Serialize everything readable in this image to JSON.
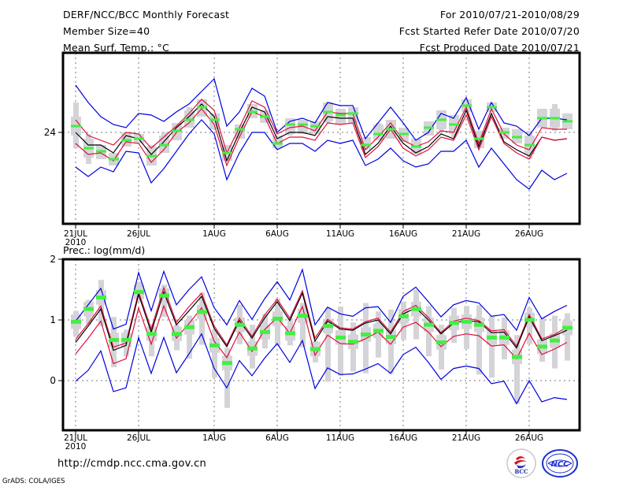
{
  "header": {
    "left": [
      "DERF/NCC/BCC Monthly Forecast",
      "Member Size=40",
      "Mean Surf. Temp.: °C"
    ],
    "right": [
      "For 2010/07/21-2010/08/29",
      "Fcst Started Refer Date 2010/07/20",
      "Fcst Produced Date 2010/07/21"
    ]
  },
  "footer": {
    "url": "http://cmdp.ncc.cma.gov.cn",
    "credit": "GrADS: COLA/IGES",
    "logos": [
      "BCC",
      "NCC"
    ]
  },
  "colors": {
    "envelope": "#0000e0",
    "spread": "#e0103c",
    "mean": "#000000",
    "marker": "#44ee44",
    "box": "#d4d4d8"
  },
  "chart_data": [
    {
      "type": "line",
      "title": "Mean Surf. Temp.: °C",
      "xlabel": "",
      "ylabel": "°C",
      "x_tick_labels": [
        "21JUL",
        "26JUL",
        "1AUG",
        "6AUG",
        "11AUG",
        "16AUG",
        "21AUG",
        "26AUG"
      ],
      "x_tick_sublabel": "2010",
      "x_tick_days": [
        0,
        5,
        11,
        16,
        21,
        26,
        31,
        36
      ],
      "y_tick_labels": [
        "24"
      ],
      "y_ticks": [
        24
      ],
      "ylim": [
        18.8,
        28.0
      ],
      "grid": true,
      "days": 40,
      "series": [
        {
          "name": "max",
          "color_key": "envelope",
          "values": [
            27.0,
            25.9,
            25.0,
            24.5,
            24.3,
            25.2,
            25.1,
            24.7,
            25.3,
            25.8,
            26.6,
            27.4,
            24.4,
            25.3,
            26.8,
            26.3,
            24.0,
            24.7,
            24.9,
            24.6,
            25.9,
            25.7,
            25.7,
            23.6,
            24.6,
            25.6,
            24.6,
            23.5,
            24.0,
            25.2,
            24.9,
            26.2,
            24.2,
            25.9,
            24.6,
            24.4,
            23.8,
            24.9,
            24.9,
            24.8
          ]
        },
        {
          "name": "spread-upper",
          "color_key": "spread",
          "values": [
            24.8,
            23.8,
            23.5,
            23.2,
            24.0,
            23.9,
            23.0,
            23.7,
            24.4,
            25.2,
            26.1,
            25.4,
            22.7,
            24.3,
            26.0,
            25.6,
            23.9,
            24.3,
            24.4,
            24.1,
            25.3,
            25.2,
            25.2,
            22.9,
            23.7,
            24.6,
            23.5,
            23.1,
            23.4,
            24.1,
            24.0,
            25.6,
            23.3,
            25.5,
            23.9,
            23.2,
            22.9,
            24.3,
            24.2,
            24.2
          ]
        },
        {
          "name": "mean",
          "color_key": "mean",
          "values": [
            24.0,
            23.2,
            23.2,
            22.7,
            23.8,
            23.6,
            22.6,
            23.4,
            24.3,
            25.0,
            25.8,
            25.0,
            22.2,
            24.0,
            25.6,
            25.3,
            23.6,
            24.0,
            24.0,
            23.8,
            25.0,
            24.9,
            24.9,
            22.6,
            23.3,
            24.4,
            23.3,
            22.7,
            23.1,
            23.9,
            23.6,
            25.4,
            23.1,
            25.2,
            23.4,
            22.9,
            22.5,
            23.7,
            23.5,
            23.6
          ]
        },
        {
          "name": "spread-lower",
          "color_key": "spread",
          "values": [
            23.3,
            22.6,
            22.7,
            22.2,
            23.4,
            23.3,
            22.1,
            22.9,
            24.0,
            24.6,
            25.5,
            24.5,
            21.9,
            23.7,
            25.3,
            25.0,
            23.3,
            23.7,
            23.7,
            23.5,
            24.6,
            24.5,
            24.6,
            22.4,
            23.1,
            24.2,
            23.0,
            22.5,
            22.9,
            23.7,
            23.5,
            25.1,
            22.9,
            25.0,
            23.3,
            22.7,
            22.3,
            23.7,
            23.5,
            23.6
          ]
        },
        {
          "name": "min",
          "color_key": "envelope",
          "values": [
            21.8,
            21.2,
            21.8,
            21.5,
            22.8,
            22.7,
            20.8,
            21.7,
            22.8,
            23.9,
            24.8,
            23.9,
            21.0,
            22.7,
            24.0,
            24.0,
            22.9,
            23.3,
            23.3,
            22.8,
            23.5,
            23.3,
            23.5,
            21.9,
            22.3,
            23.0,
            22.2,
            21.8,
            22.0,
            22.8,
            22.8,
            23.5,
            21.8,
            23.0,
            22.0,
            21.0,
            20.4,
            21.6,
            21.0,
            21.4
          ]
        }
      ],
      "markers": {
        "name": "observed/median",
        "color_key": "marker",
        "values": [
          24.4,
          23.0,
          22.8,
          22.3,
          23.5,
          23.6,
          22.5,
          23.2,
          24.1,
          24.8,
          25.6,
          24.8,
          22.7,
          24.2,
          25.3,
          25.0,
          23.3,
          24.5,
          24.5,
          24.4,
          25.3,
          25.1,
          25.2,
          23.2,
          23.9,
          24.2,
          23.9,
          23.1,
          24.3,
          24.8,
          24.5,
          25.7,
          23.6,
          25.6,
          24.0,
          23.7,
          23.2,
          24.9,
          24.9,
          24.7
        ]
      },
      "boxes": {
        "name": "ensemble range",
        "color_key": "box",
        "low": [
          23.0,
          22.0,
          22.3,
          21.9,
          23.1,
          23.3,
          21.9,
          22.7,
          23.5,
          24.3,
          25.0,
          24.2,
          22.2,
          23.6,
          24.9,
          24.6,
          23.0,
          23.8,
          23.9,
          23.9,
          24.6,
          24.5,
          24.6,
          22.9,
          23.5,
          23.6,
          23.4,
          22.6,
          23.8,
          24.0,
          23.7,
          25.3,
          23.0,
          25.3,
          23.6,
          23.3,
          22.3,
          24.3,
          24.1,
          24.2
        ],
        "high": [
          25.9,
          23.9,
          23.2,
          22.7,
          24.0,
          23.9,
          23.2,
          24.0,
          24.6,
          25.6,
          26.1,
          25.2,
          23.2,
          24.5,
          25.8,
          25.4,
          23.8,
          24.9,
          24.8,
          24.7,
          25.9,
          25.5,
          25.6,
          23.7,
          24.6,
          24.8,
          24.3,
          23.6,
          24.7,
          25.4,
          25.1,
          26.1,
          24.1,
          25.9,
          24.3,
          24.2,
          24.1,
          25.5,
          25.8,
          25.2
        ]
      }
    },
    {
      "type": "line",
      "title": "Prec.: log(mm/d)",
      "xlabel": "",
      "ylabel": "log(mm/d)",
      "x_tick_labels": [
        "21JUL",
        "26JUL",
        "1AUG",
        "6AUG",
        "11AUG",
        "16AUG",
        "21AUG",
        "26AUG"
      ],
      "x_tick_sublabel": "2010",
      "x_tick_days": [
        0,
        5,
        11,
        16,
        21,
        26,
        31,
        36
      ],
      "y_tick_labels": [
        "0",
        "1",
        "2"
      ],
      "y_ticks": [
        0,
        1,
        2
      ],
      "ylim": [
        -0.8,
        2.0
      ],
      "grid": true,
      "days": 40,
      "series": [
        {
          "name": "max",
          "color_key": "envelope",
          "values": [
            0.98,
            1.25,
            1.52,
            0.85,
            0.93,
            1.78,
            1.15,
            1.8,
            1.25,
            1.5,
            1.71,
            1.2,
            0.92,
            1.32,
            1.01,
            1.35,
            1.63,
            1.33,
            1.83,
            0.92,
            1.21,
            1.1,
            1.06,
            1.2,
            1.22,
            0.96,
            1.39,
            1.54,
            1.3,
            1.05,
            1.25,
            1.32,
            1.28,
            1.06,
            1.09,
            0.83,
            1.37,
            1.02,
            1.14,
            1.24
          ]
        },
        {
          "name": "spread-upper",
          "color_key": "spread",
          "values": [
            0.68,
            0.94,
            1.23,
            0.55,
            0.62,
            1.46,
            0.85,
            1.53,
            0.96,
            1.22,
            1.44,
            0.9,
            0.59,
            1.03,
            0.73,
            1.08,
            1.34,
            1.03,
            1.48,
            0.7,
            1.01,
            0.87,
            0.85,
            0.97,
            1.03,
            0.8,
            1.14,
            1.24,
            1.04,
            0.79,
            0.98,
            1.03,
            0.99,
            0.82,
            0.84,
            0.57,
            1.09,
            0.69,
            0.76,
            0.88
          ]
        },
        {
          "name": "mean",
          "color_key": "mean",
          "values": [
            0.63,
            0.9,
            1.18,
            0.5,
            0.58,
            1.42,
            0.8,
            1.46,
            0.92,
            1.15,
            1.39,
            0.86,
            0.56,
            0.99,
            0.7,
            1.03,
            1.3,
            0.99,
            1.44,
            0.65,
            0.98,
            0.85,
            0.83,
            0.95,
            1.0,
            0.77,
            1.1,
            1.2,
            1.0,
            0.77,
            0.95,
            0.99,
            0.97,
            0.79,
            0.8,
            0.54,
            1.05,
            0.66,
            0.74,
            0.83
          ]
        },
        {
          "name": "spread-lower",
          "color_key": "spread",
          "values": [
            0.44,
            0.7,
            0.98,
            0.28,
            0.36,
            1.2,
            0.6,
            1.23,
            0.7,
            0.94,
            1.2,
            0.65,
            0.38,
            0.8,
            0.48,
            0.84,
            1.04,
            0.78,
            1.22,
            0.42,
            0.75,
            0.61,
            0.6,
            0.69,
            0.8,
            0.6,
            0.88,
            0.96,
            0.8,
            0.56,
            0.73,
            0.77,
            0.74,
            0.57,
            0.59,
            0.36,
            0.78,
            0.43,
            0.52,
            0.63
          ]
        },
        {
          "name": "min",
          "color_key": "envelope",
          "values": [
            -0.01,
            0.17,
            0.49,
            -0.18,
            -0.12,
            0.71,
            0.12,
            0.71,
            0.13,
            0.44,
            0.77,
            0.2,
            -0.12,
            0.33,
            0.08,
            0.37,
            0.61,
            0.3,
            0.66,
            -0.13,
            0.21,
            0.1,
            0.11,
            0.19,
            0.28,
            0.12,
            0.43,
            0.55,
            0.3,
            0.02,
            0.2,
            0.24,
            0.2,
            -0.05,
            -0.01,
            -0.38,
            0.0,
            -0.35,
            -0.28,
            -0.31
          ]
        }
      ],
      "markers": {
        "name": "observed/median",
        "color_key": "marker",
        "values": [
          0.97,
          1.18,
          1.37,
          0.67,
          0.67,
          1.46,
          0.77,
          1.4,
          0.77,
          0.88,
          1.13,
          0.58,
          0.29,
          0.92,
          0.53,
          0.8,
          1.02,
          0.78,
          1.07,
          0.52,
          0.9,
          0.71,
          0.64,
          0.76,
          0.82,
          0.72,
          1.06,
          1.18,
          0.92,
          0.63,
          0.95,
          0.97,
          0.92,
          0.71,
          0.71,
          0.39,
          1.0,
          0.56,
          0.66,
          0.87
        ]
      },
      "boxes": {
        "name": "ensemble range",
        "color_key": "box",
        "low": [
          0.72,
          0.93,
          0.9,
          0.22,
          0.4,
          1.3,
          0.4,
          1.05,
          0.5,
          0.36,
          0.59,
          0.05,
          -0.45,
          0.6,
          0.2,
          0.53,
          0.57,
          0.58,
          0.55,
          0.3,
          -0.02,
          0.08,
          0.15,
          0.12,
          0.38,
          0.11,
          0.67,
          0.68,
          0.4,
          0.18,
          0.62,
          0.52,
          0.1,
          0.05,
          0.35,
          -0.38,
          0.6,
          0.31,
          0.2,
          0.33
        ]
      },
      "boxes_high_note": "high values listed in boxes_high",
      "boxes_high": [
        1.15,
        1.33,
        1.66,
        1.05,
        0.84,
        1.63,
        0.93,
        1.58,
        0.92,
        1.07,
        1.45,
        0.85,
        0.54,
        1.25,
        0.92,
        1.1,
        1.35,
        1.03,
        1.28,
        0.65,
        1.2,
        1.22,
        0.96,
        1.28,
        1.14,
        1.17,
        1.3,
        1.5,
        1.23,
        0.92,
        1.2,
        1.23,
        1.24,
        1.07,
        1.04,
        0.75,
        1.2,
        1.03,
        1.07,
        1.11
      ]
    }
  ]
}
